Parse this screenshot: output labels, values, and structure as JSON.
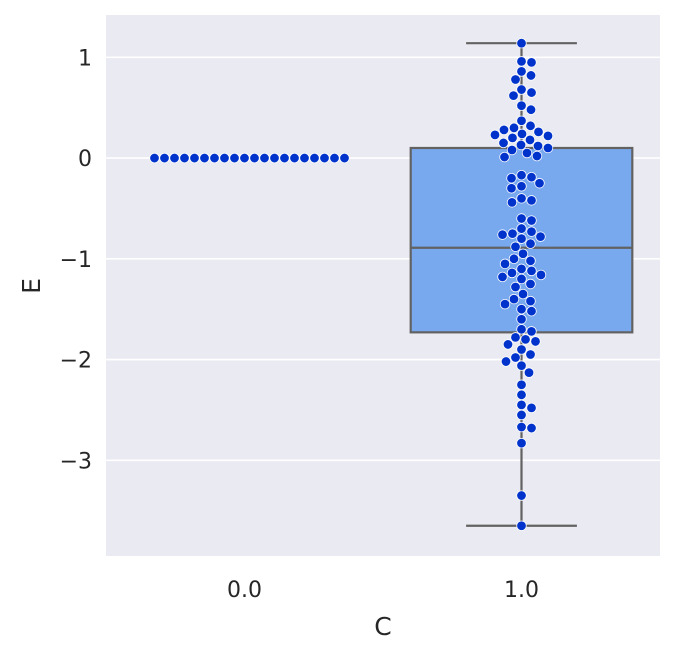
{
  "chart_data": {
    "type": "box+swarm",
    "xlabel": "C",
    "ylabel": "E",
    "categories": [
      "0.0",
      "1.0"
    ],
    "ylim": [
      -3.95,
      1.42
    ],
    "yticks": [
      1,
      0,
      -1,
      -2,
      -3
    ],
    "ytick_labels": [
      "1",
      "0",
      "−1",
      "−2",
      "−3"
    ],
    "grid": true,
    "colors": {
      "background": "#eaeaf2",
      "box": "#78a8ee",
      "box_edge": "#626262",
      "point": "#0033cc",
      "point_edge": "#ffffff"
    },
    "boxes": [
      {
        "category": "1.0",
        "whisker_low": -3.65,
        "q1": -1.73,
        "median": -0.89,
        "q3": 0.1,
        "whisker_high": 1.14
      }
    ],
    "points": [
      {
        "category": "0.0",
        "values": [
          0,
          0,
          0,
          0,
          0,
          0,
          0,
          0,
          0,
          0,
          0,
          0,
          0,
          0,
          0,
          0,
          0,
          0,
          0,
          0,
          0,
          0,
          0,
          0,
          0
        ]
      },
      {
        "category": "1.0",
        "values": [
          1.14,
          0.96,
          0.95,
          0.86,
          0.82,
          0.78,
          0.68,
          0.65,
          0.62,
          0.52,
          0.48,
          0.37,
          0.32,
          0.3,
          0.28,
          0.26,
          0.24,
          0.23,
          0.22,
          0.2,
          0.18,
          0.15,
          0.13,
          0.12,
          0.1,
          0.08,
          0.05,
          0.02,
          0.01,
          -0.17,
          -0.19,
          -0.2,
          -0.25,
          -0.28,
          -0.3,
          -0.4,
          -0.42,
          -0.44,
          -0.6,
          -0.62,
          -0.7,
          -0.73,
          -0.75,
          -0.76,
          -0.78,
          -0.8,
          -0.85,
          -0.88,
          -0.95,
          -1.0,
          -1.02,
          -1.05,
          -1.1,
          -1.12,
          -1.14,
          -1.16,
          -1.18,
          -1.2,
          -1.25,
          -1.28,
          -1.35,
          -1.4,
          -1.42,
          -1.45,
          -1.5,
          -1.52,
          -1.6,
          -1.7,
          -1.72,
          -1.78,
          -1.8,
          -1.82,
          -1.85,
          -1.9,
          -1.95,
          -1.98,
          -2.02,
          -2.06,
          -2.13,
          -2.25,
          -2.35,
          -2.45,
          -2.48,
          -2.55,
          -2.67,
          -2.68,
          -2.83,
          -3.35,
          -3.65
        ]
      }
    ]
  }
}
